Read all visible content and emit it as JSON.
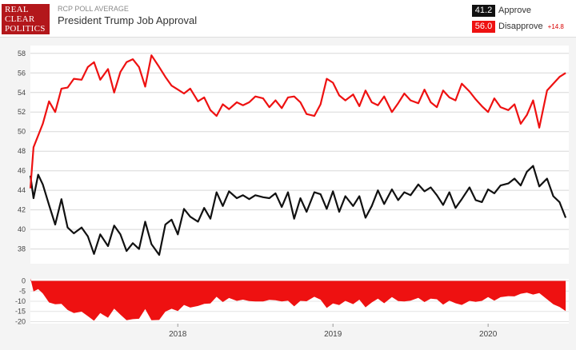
{
  "header": {
    "logo_lines": [
      "REAL",
      "CLEAR",
      "POLITICS"
    ],
    "subtitle": "RCP POLL AVERAGE",
    "title": "President Trump Job Approval"
  },
  "legend": {
    "approve_value": "41.2",
    "approve_label": "Approve",
    "disapprove_value": "56.0",
    "disapprove_label": "Disapprove",
    "spread": "+14.8"
  },
  "colors": {
    "approve": "#111111",
    "disapprove": "#ee1111",
    "spread_fill": "#ee1111"
  },
  "chart_data": [
    {
      "type": "line",
      "ylim": [
        36.5,
        58.8
      ],
      "yticks": [
        38,
        40,
        42,
        44,
        46,
        48,
        50,
        52,
        54,
        56,
        58
      ],
      "xlim": [
        2017.05,
        2020.52
      ],
      "xticks": [
        {
          "x": 2018.0,
          "label": "2018"
        },
        {
          "x": 2019.0,
          "label": "2019"
        },
        {
          "x": 2020.0,
          "label": "2020"
        }
      ],
      "grid": true,
      "series": [
        {
          "name": "Approve",
          "x": [
            2017.05,
            2017.07,
            2017.1,
            2017.13,
            2017.17,
            2017.21,
            2017.25,
            2017.29,
            2017.33,
            2017.38,
            2017.42,
            2017.46,
            2017.5,
            2017.55,
            2017.59,
            2017.63,
            2017.67,
            2017.71,
            2017.75,
            2017.79,
            2017.83,
            2017.88,
            2017.92,
            2017.96,
            2018.0,
            2018.04,
            2018.08,
            2018.13,
            2018.17,
            2018.21,
            2018.25,
            2018.29,
            2018.33,
            2018.38,
            2018.42,
            2018.46,
            2018.5,
            2018.55,
            2018.59,
            2018.63,
            2018.67,
            2018.71,
            2018.75,
            2018.79,
            2018.83,
            2018.88,
            2018.92,
            2018.96,
            2019.0,
            2019.04,
            2019.08,
            2019.13,
            2019.17,
            2019.21,
            2019.25,
            2019.29,
            2019.33,
            2019.38,
            2019.42,
            2019.46,
            2019.5,
            2019.55,
            2019.59,
            2019.63,
            2019.67,
            2019.71,
            2019.75,
            2019.79,
            2019.83,
            2019.88,
            2019.92,
            2019.96,
            2020.0,
            2020.04,
            2020.08,
            2020.13,
            2020.17,
            2020.21,
            2020.25,
            2020.29,
            2020.33,
            2020.38,
            2020.42,
            2020.46,
            2020.5
          ],
          "y": [
            45.5,
            43.2,
            45.6,
            44.6,
            42.5,
            40.5,
            43.1,
            40.2,
            39.6,
            40.2,
            39.3,
            37.5,
            39.5,
            38.3,
            40.4,
            39.5,
            37.8,
            38.6,
            38.0,
            40.8,
            38.5,
            37.4,
            40.5,
            41.0,
            39.5,
            42.1,
            41.3,
            40.8,
            42.2,
            41.1,
            43.8,
            42.4,
            43.9,
            43.2,
            43.5,
            43.1,
            43.5,
            43.3,
            43.2,
            43.7,
            42.3,
            43.8,
            41.1,
            43.2,
            41.8,
            43.8,
            43.6,
            42.1,
            43.9,
            41.8,
            43.4,
            42.4,
            43.4,
            41.2,
            42.4,
            44.0,
            42.6,
            44.1,
            43.0,
            43.8,
            43.5,
            44.6,
            43.9,
            44.3,
            43.5,
            42.5,
            43.8,
            42.2,
            43.1,
            44.3,
            43.0,
            42.8,
            44.1,
            43.7,
            44.5,
            44.7,
            45.2,
            44.5,
            45.9,
            46.5,
            44.4,
            45.2,
            43.4,
            42.8,
            41.2
          ]
        },
        {
          "name": "Disapprove",
          "x": [
            2017.05,
            2017.07,
            2017.1,
            2017.13,
            2017.17,
            2017.21,
            2017.25,
            2017.29,
            2017.33,
            2017.38,
            2017.42,
            2017.46,
            2017.5,
            2017.55,
            2017.59,
            2017.63,
            2017.67,
            2017.71,
            2017.75,
            2017.79,
            2017.83,
            2017.88,
            2017.92,
            2017.96,
            2018.0,
            2018.04,
            2018.08,
            2018.13,
            2018.17,
            2018.21,
            2018.25,
            2018.29,
            2018.33,
            2018.38,
            2018.42,
            2018.46,
            2018.5,
            2018.55,
            2018.59,
            2018.63,
            2018.67,
            2018.71,
            2018.75,
            2018.79,
            2018.83,
            2018.88,
            2018.92,
            2018.96,
            2019.0,
            2019.04,
            2019.08,
            2019.13,
            2019.17,
            2019.21,
            2019.25,
            2019.29,
            2019.33,
            2019.38,
            2019.42,
            2019.46,
            2019.5,
            2019.55,
            2019.59,
            2019.63,
            2019.67,
            2019.71,
            2019.75,
            2019.79,
            2019.83,
            2019.88,
            2019.92,
            2019.96,
            2020.0,
            2020.04,
            2020.08,
            2020.13,
            2020.17,
            2020.21,
            2020.25,
            2020.29,
            2020.33,
            2020.38,
            2020.42,
            2020.46,
            2020.5
          ],
          "y": [
            44.2,
            48.4,
            49.6,
            50.8,
            53.1,
            52.0,
            54.4,
            54.5,
            55.4,
            55.3,
            56.6,
            57.1,
            55.3,
            56.4,
            54.0,
            56.1,
            57.1,
            57.4,
            56.6,
            54.6,
            57.8,
            56.6,
            55.6,
            54.7,
            54.3,
            53.9,
            54.4,
            53.1,
            53.5,
            52.2,
            51.6,
            52.8,
            52.3,
            53.0,
            52.7,
            53.0,
            53.6,
            53.4,
            52.5,
            53.2,
            52.4,
            53.5,
            53.6,
            53.0,
            51.8,
            51.6,
            52.8,
            55.4,
            55.0,
            53.7,
            53.2,
            53.8,
            52.6,
            54.2,
            53.0,
            52.7,
            53.6,
            52.0,
            52.9,
            53.9,
            53.2,
            52.9,
            54.3,
            53.0,
            52.5,
            54.2,
            53.5,
            53.2,
            54.9,
            54.1,
            53.3,
            52.6,
            52.0,
            53.4,
            52.5,
            52.2,
            52.8,
            50.8,
            51.7,
            53.2,
            50.4,
            54.2,
            54.9,
            55.6,
            56.0
          ]
        }
      ]
    },
    {
      "type": "area",
      "ylim": [
        -21,
        1
      ],
      "yticks": [
        0,
        -5,
        -10,
        -15,
        -20
      ],
      "series": [
        {
          "name": "Spread",
          "x": [
            2017.05,
            2017.07,
            2017.1,
            2017.13,
            2017.17,
            2017.21,
            2017.25,
            2017.29,
            2017.33,
            2017.38,
            2017.42,
            2017.46,
            2017.5,
            2017.55,
            2017.59,
            2017.63,
            2017.67,
            2017.71,
            2017.75,
            2017.79,
            2017.83,
            2017.88,
            2017.92,
            2017.96,
            2018.0,
            2018.04,
            2018.08,
            2018.13,
            2018.17,
            2018.21,
            2018.25,
            2018.29,
            2018.33,
            2018.38,
            2018.42,
            2018.46,
            2018.5,
            2018.55,
            2018.59,
            2018.63,
            2018.67,
            2018.71,
            2018.75,
            2018.79,
            2018.83,
            2018.88,
            2018.92,
            2018.96,
            2019.0,
            2019.04,
            2019.08,
            2019.13,
            2019.17,
            2019.21,
            2019.25,
            2019.29,
            2019.33,
            2019.38,
            2019.42,
            2019.46,
            2019.5,
            2019.55,
            2019.59,
            2019.63,
            2019.67,
            2019.71,
            2019.75,
            2019.79,
            2019.83,
            2019.88,
            2019.92,
            2019.96,
            2020.0,
            2020.04,
            2020.08,
            2020.13,
            2020.17,
            2020.21,
            2020.25,
            2020.29,
            2020.33,
            2020.38,
            2020.42,
            2020.46,
            2020.5
          ],
          "y": [
            1.3,
            -5.2,
            -4.0,
            -6.2,
            -10.6,
            -11.5,
            -11.3,
            -14.3,
            -15.8,
            -15.1,
            -17.3,
            -19.6,
            -15.8,
            -18.1,
            -13.6,
            -16.6,
            -19.3,
            -18.8,
            -18.6,
            -13.8,
            -19.3,
            -19.2,
            -15.1,
            -13.7,
            -14.8,
            -11.8,
            -13.1,
            -12.3,
            -11.3,
            -11.1,
            -7.8,
            -10.4,
            -8.4,
            -9.8,
            -9.2,
            -9.9,
            -10.1,
            -10.1,
            -9.3,
            -9.5,
            -10.1,
            -9.7,
            -12.5,
            -9.8,
            -10.0,
            -7.8,
            -9.2,
            -13.3,
            -11.1,
            -11.9,
            -9.8,
            -11.4,
            -9.2,
            -13.0,
            -10.6,
            -8.7,
            -11.0,
            -7.9,
            -9.9,
            -10.1,
            -9.7,
            -8.3,
            -10.4,
            -8.7,
            -9.0,
            -11.7,
            -9.7,
            -11.0,
            -11.8,
            -9.8,
            -10.3,
            -9.8,
            -7.9,
            -9.7,
            -8.0,
            -7.5,
            -7.6,
            -6.3,
            -5.8,
            -6.7,
            -6.0,
            -9.0,
            -11.5,
            -12.8,
            -14.8
          ]
        }
      ]
    }
  ]
}
